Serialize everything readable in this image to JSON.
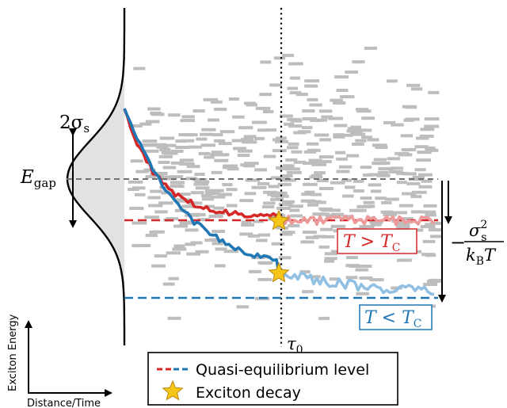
{
  "colors": {
    "red": "#d62728",
    "blue": "#1f77b4",
    "red_light": "#ec9a9a",
    "blue_light": "#92c0e3",
    "grey": "#bdbdbd",
    "star": "#f5c518",
    "dash_grey": "#707070"
  },
  "labels": {
    "sigma": "2σ",
    "sigma_sub": "s",
    "egap": "E",
    "egap_sub": "gap",
    "shift_sign": "−",
    "shift_num": "σ",
    "shift_num_sub": "s",
    "shift_num_sup": "2",
    "shift_den": "k",
    "shift_den_sub": "B",
    "shift_den_T": "T",
    "tau": "τ",
    "tau_sub": "0",
    "warm_box": "T > T",
    "warm_box_sub": "C",
    "cold_box": "T < T",
    "cold_box_sub": "C",
    "y_axis": "Exciton Energy",
    "x_axis": "Distance/Time"
  },
  "legend": {
    "level": "Quasi-equilibrium level",
    "decay": "Exciton decay"
  },
  "icons": [
    "star-icon"
  ]
}
